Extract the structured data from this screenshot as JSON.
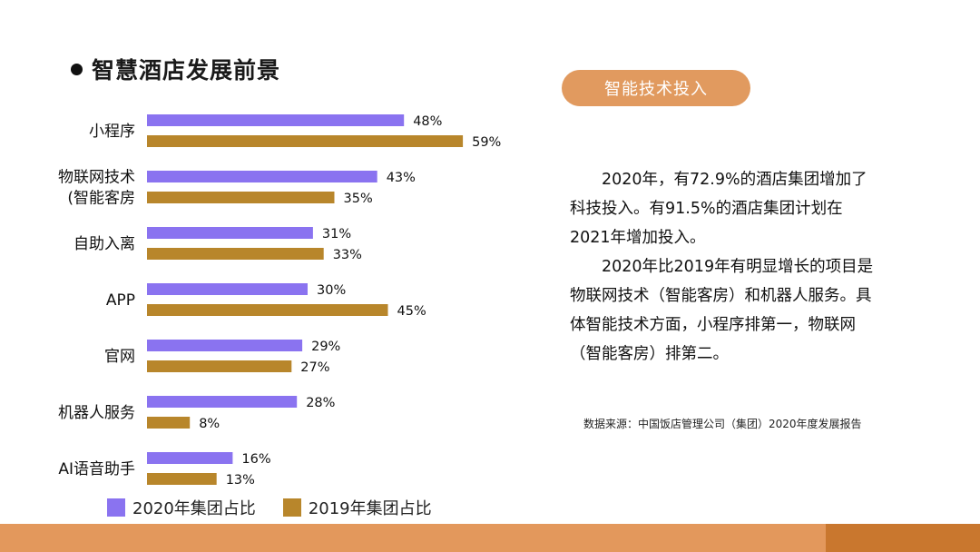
{
  "title": "智慧酒店发展前景",
  "pill_label": "智能技术投入",
  "paragraphs": [
    "2020年，有72.9%的酒店集团增加了科技投入。有91.5%的酒店集团计划在2021年增加投入。",
    "2020年比2019年有明显增长的项目是物联网技术（智能客房）和机器人服务。具体智能技术方面，小程序排第一，物联网（智能客房）排第二。"
  ],
  "source": "数据来源：中国饭店管理公司（集团）2020年度发展报告",
  "colors": {
    "series_2020": "#8a73f0",
    "series_2019": "#b8862b",
    "pill": "#e19a5f",
    "footer_main": "#e3985c",
    "footer_side": "#c9772e"
  },
  "chart_data": {
    "type": "bar",
    "orientation": "horizontal",
    "categories": [
      [
        "小程序"
      ],
      [
        "物联网技术",
        "(智能客房"
      ],
      [
        "自助入离"
      ],
      [
        "APP"
      ],
      [
        "官网"
      ],
      [
        "机器人服务"
      ],
      [
        "AI语音助手"
      ]
    ],
    "series": [
      {
        "name": "2020年集团占比",
        "values": [
          48,
          43,
          31,
          30,
          29,
          28,
          16
        ],
        "labels": [
          "48%",
          "43%",
          "31%",
          "30%",
          "29%",
          "28%",
          "16%"
        ]
      },
      {
        "name": "2019年集团占比",
        "values": [
          59,
          35,
          33,
          45,
          27,
          8,
          13
        ],
        "labels": [
          "59%",
          "35%",
          "33%",
          "45%",
          "27%",
          "8%",
          "13%"
        ]
      }
    ],
    "xlim": [
      0,
      100
    ],
    "grid": false,
    "legend_position": "bottom"
  }
}
